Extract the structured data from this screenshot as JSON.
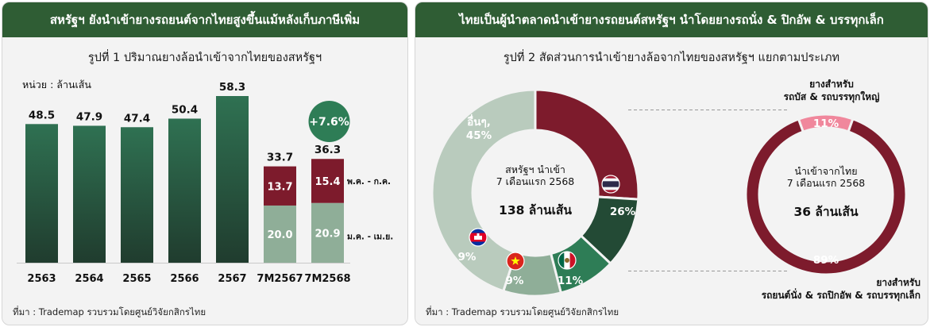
{
  "left_panel": {
    "header": "สหรัฐฯ ยังนำเข้ายางรถยนต์จากไทยสูงขึ้นแม้หลังเก็บภาษีเพิ่ม",
    "source": "ที่มา : Trademap รวบรวมโดยศูนย์วิจัยกสิกรไทย"
  },
  "right_panel": {
    "header": "ไทยเป็นผู้นำตลาดนำเข้ายางรถยนต์สหรัฐฯ นำโดยยางรถนั่ง & ปิกอัพ & บรรทุกเล็ก",
    "source": "ที่มา : Trademap รวบรวมโดยศูนย์วิจัยกสิกรไทย"
  },
  "chart_data": [
    {
      "type": "bar",
      "title": "รูปที่ 1 ปริมาณยางล้อนำเข้าจากไทยของสหรัฐฯ",
      "unit_label": "หน่วย : ล้านเส้น",
      "categories": [
        "2563",
        "2564",
        "2565",
        "2566",
        "2567",
        "7M2567",
        "7M2568"
      ],
      "values": [
        48.5,
        47.9,
        47.4,
        50.4,
        58.3,
        33.7,
        36.3
      ],
      "value_labels": [
        "48.5",
        "47.9",
        "47.4",
        "50.4",
        "58.3",
        "33.7",
        "36.3"
      ],
      "stacked": {
        "categories": [
          "7M2567",
          "7M2568"
        ],
        "series": [
          {
            "name": "ม.ค. - เม.ย.",
            "values": [
              20.0,
              20.9
            ],
            "labels": [
              "20.0",
              "20.9"
            ]
          },
          {
            "name": "พ.ค. - ก.ค.",
            "values": [
              13.7,
              15.4
            ],
            "labels": [
              "13.7",
              "15.4"
            ]
          }
        ]
      },
      "growth_badge": "+7.6%",
      "ylim": [
        0,
        62
      ],
      "colors": {
        "annual": "#2a6a4a",
        "jan_apr": "#8fae98",
        "may_jul": "#7d1b2c",
        "badge": "#2e7d56"
      }
    },
    {
      "type": "pie",
      "title": "รูปที่ 2 สัดส่วนการนำเข้ายางล้อจากไทยของสหรัฐฯ แยกตามประเภท",
      "charts": [
        {
          "center_lines": [
            "สหรัฐฯ นำเข้า",
            "7 เดือนแรก 2568"
          ],
          "center_value": "138 ล้านเส้น",
          "slices": [
            {
              "label": "ไทย",
              "value": 26,
              "text": "26%",
              "color": "#7d1b2c",
              "icon": "thailand-flag-icon"
            },
            {
              "label": "เม็กซิโก",
              "value": 11,
              "text": "11%",
              "color": "#234a35",
              "icon": "mexico-flag-icon"
            },
            {
              "label": "เวียดนาม",
              "value": 9,
              "text": "9%",
              "color": "#2e7d56",
              "icon": "vietnam-flag-icon"
            },
            {
              "label": "กัมพูชา",
              "value": 9,
              "text": "9%",
              "color": "#8fae98",
              "icon": "cambodia-flag-icon"
            },
            {
              "label": "อื่นๆ,",
              "value": 45,
              "text": "45%",
              "color": "#b9cbbd"
            }
          ]
        },
        {
          "center_lines": [
            "นำเข้าจากไทย",
            "7 เดือนแรก 2568"
          ],
          "center_value": "36 ล้านเส้น",
          "slices": [
            {
              "label": "ยางสำหรับ รถบัส & รถบรรทุกใหญ่",
              "value": 11,
              "text": "11%",
              "color": "#f0879c"
            },
            {
              "label": "ยางสำหรับ รถยนต์นั่ง & รถปิกอัพ & รถบรรทุกเล็ก",
              "value": 89,
              "text": "89%",
              "color": "#7d1b2c"
            }
          ],
          "callouts": [
            {
              "lines": [
                "ยางสำหรับ",
                "รถบัส & รถบรรทุกใหญ่"
              ]
            },
            {
              "lines": [
                "ยางสำหรับ",
                "รถยนต์นั่ง & รถปิกอัพ & รถบรรทุกเล็ก"
              ]
            }
          ]
        }
      ]
    }
  ]
}
